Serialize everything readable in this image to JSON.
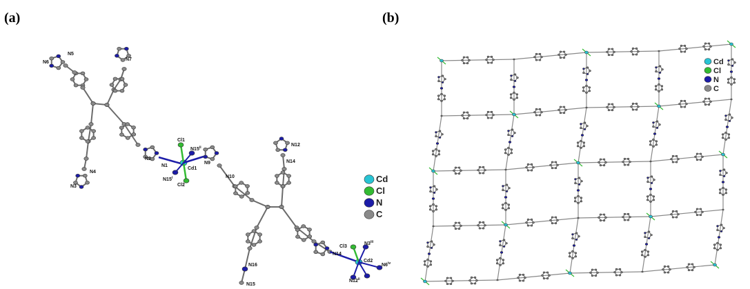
{
  "panels": [
    {
      "label": "(a)",
      "atom_labels": [
        {
          "text": "N6"
        },
        {
          "text": "N5"
        },
        {
          "text": "N7"
        },
        {
          "text": "N4"
        },
        {
          "text": "N3"
        },
        {
          "text": "N2"
        },
        {
          "text": "N1"
        },
        {
          "text": "Cl1"
        },
        {
          "text": "N15",
          "sup": "ii"
        },
        {
          "text": "Cd1"
        },
        {
          "text": "N9"
        },
        {
          "text": "N10"
        },
        {
          "text": "N15",
          "sup": "i"
        },
        {
          "text": "Cl2"
        },
        {
          "text": "N12"
        },
        {
          "text": "N14"
        },
        {
          "text": "Cl3"
        },
        {
          "text": "N3",
          "sup": "iii"
        },
        {
          "text": "N14"
        },
        {
          "text": "Cd2"
        },
        {
          "text": "N6",
          "sup": "iv"
        },
        {
          "text": "N16"
        },
        {
          "text": "N15"
        },
        {
          "text": "N12",
          "sup": "ii"
        }
      ],
      "legend": [
        "Cd",
        "Cl",
        "N",
        "C"
      ]
    },
    {
      "label": "(b)",
      "legend": [
        "Cd",
        "Cl",
        "N",
        "C"
      ]
    }
  ]
}
